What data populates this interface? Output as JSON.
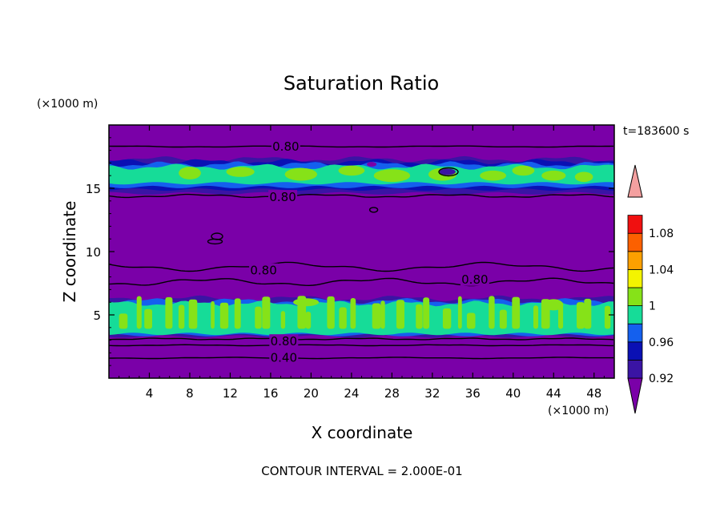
{
  "chart_data": {
    "type": "heatmap",
    "title": "Saturation Ratio",
    "xlabel": "X coordinate",
    "ylabel": "Z coordinate",
    "x_unit_label": "(×1000 m)",
    "y_unit_label": "(×1000 m)",
    "time_label": "t=183600 s",
    "footer": "CONTOUR INTERVAL = 2.000E-01",
    "xlim": [
      0,
      50
    ],
    "ylim": [
      0,
      20
    ],
    "x_ticks": [
      4,
      8,
      12,
      16,
      20,
      24,
      28,
      32,
      36,
      40,
      44,
      48
    ],
    "x_tick_labels": [
      "4",
      "8",
      "12",
      "16",
      "20",
      "24",
      "28",
      "32",
      "36",
      "40",
      "44",
      "48"
    ],
    "y_ticks": [
      5,
      10,
      15
    ],
    "y_tick_labels": [
      "5",
      "10",
      "15"
    ],
    "colorbar": {
      "levels": [
        0.92,
        0.94,
        0.96,
        0.98,
        1.0,
        1.02,
        1.04,
        1.06,
        1.08,
        1.1
      ],
      "tick_labels": [
        "0.92",
        "0.96",
        "1",
        "1.04",
        "1.08"
      ],
      "tick_values": [
        0.92,
        0.96,
        1.0,
        1.04,
        1.08
      ],
      "colors": [
        "#7a00a8",
        "#3a14a4",
        "#0a10b4",
        "#1460ee",
        "#16dc98",
        "#86e218",
        "#f4f400",
        "#fca000",
        "#fc6000",
        "#f01010",
        "#f4a0a0"
      ]
    },
    "contour_labels": [
      {
        "text": "0.80",
        "x": 17.5,
        "z": 18.3
      },
      {
        "text": "0.80",
        "x": 17.2,
        "z": 14.3
      },
      {
        "text": "0.80",
        "x": 15.3,
        "z": 8.5
      },
      {
        "text": "0.80",
        "x": 36.2,
        "z": 7.8
      },
      {
        "text": "0.80",
        "x": 17.3,
        "z": 2.9
      },
      {
        "text": "0.40",
        "x": 17.3,
        "z": 1.6
      }
    ]
  }
}
